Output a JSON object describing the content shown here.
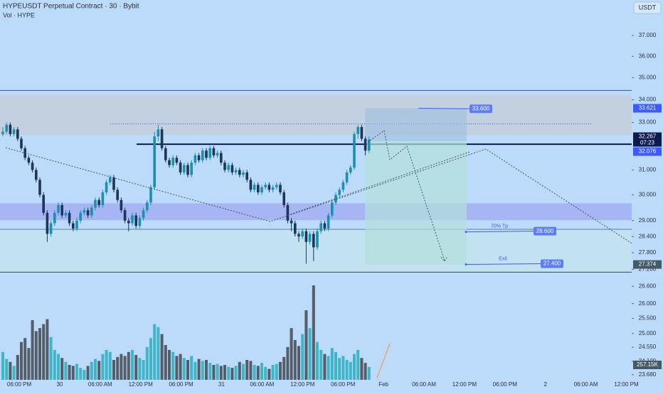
{
  "chart_data": {
    "type": "candlestick",
    "title": "HYPEUSDT Perpetual Contract · 30 · Bybit",
    "subtitle": "Vol · HYPE",
    "currency": "USDT",
    "log_scale": true,
    "ylim": [
      23.52,
      38.77
    ],
    "yticks": [
      {
        "value": 37,
        "label": "37.000"
      },
      {
        "value": 36,
        "label": "36.000"
      },
      {
        "value": 35,
        "label": "35.000"
      },
      {
        "value": 34,
        "label": "34.000"
      },
      {
        "value": 33,
        "label": "33.000"
      },
      {
        "value": 31,
        "label": "31.000"
      },
      {
        "value": 30,
        "label": "30.000"
      },
      {
        "value": 29,
        "label": "29.000"
      },
      {
        "value": 28.4,
        "label": "28.400"
      },
      {
        "value": 27.8,
        "label": "27.800"
      },
      {
        "value": 27.2,
        "label": "27.200"
      },
      {
        "value": 26.6,
        "label": "26.600"
      },
      {
        "value": 26,
        "label": "26.000"
      },
      {
        "value": 25.5,
        "label": "25.500"
      },
      {
        "value": 25,
        "label": "25.000"
      },
      {
        "value": 24.55,
        "label": "24.550"
      },
      {
        "value": 24.1,
        "label": "24.100"
      },
      {
        "value": 23.68,
        "label": "23.680"
      }
    ],
    "xlabels": [
      "06:00 PM",
      "30",
      "06:00 AM",
      "12:00 PM",
      "06:00 PM",
      "31",
      "06:00 AM",
      "12:00 PM",
      "06:00 PM",
      "Feb",
      "06:00 AM",
      "12:00 PM",
      "06:00 PM",
      "2",
      "06:00 AM",
      "12:00 PM"
    ],
    "open": [
      32.5,
      32.6,
      32.9,
      32.5,
      32.7,
      32.3,
      31.9,
      31.5,
      31.3,
      31.0,
      30.6,
      30.0,
      29.3,
      28.5,
      28.9,
      29.3,
      29.6,
      29.2,
      29.3,
      28.9,
      28.7,
      29.0,
      29.3,
      29.4,
      29.2,
      29.5,
      29.8,
      29.6,
      30.1,
      30.5,
      30.7,
      30.2,
      29.8,
      29.4,
      29.0,
      28.9,
      29.2,
      28.8,
      29.1,
      29.4,
      29.7,
      30.3,
      32.4,
      32.7,
      31.9,
      31.4,
      31.2,
      31.5,
      31.3,
      30.9,
      31.2,
      30.8,
      31.3,
      31.6,
      31.4,
      31.8,
      31.5,
      31.9,
      31.6,
      31.7,
      31.3,
      31.0,
      31.2,
      30.9,
      31.0,
      30.8,
      30.9,
      30.6,
      30.2,
      30.4,
      30.1,
      30.3,
      30.4,
      30.2,
      30.3,
      30.4,
      30.1,
      29.6,
      29.0,
      28.9,
      28.5,
      28.4,
      28.6,
      28.2,
      28.5,
      28.0,
      28.6,
      28.9,
      28.7,
      29.2,
      29.7,
      30.0,
      30.2,
      30.5,
      30.9,
      31.1,
      32.5,
      32.8,
      32.3,
      31.8
    ],
    "high": [
      32.8,
      33.0,
      33.0,
      32.8,
      32.8,
      32.4,
      32.0,
      31.6,
      31.4,
      31.1,
      30.7,
      30.1,
      29.4,
      29.0,
      29.4,
      29.7,
      29.7,
      29.4,
      29.4,
      29.0,
      29.1,
      29.4,
      29.5,
      29.5,
      29.6,
      29.9,
      29.9,
      30.2,
      30.6,
      30.8,
      30.8,
      30.3,
      29.9,
      29.5,
      29.1,
      29.3,
      29.3,
      29.2,
      29.5,
      29.8,
      30.4,
      32.6,
      32.9,
      32.8,
      32.0,
      31.5,
      31.6,
      31.6,
      31.4,
      31.3,
      31.3,
      31.4,
      31.7,
      31.7,
      31.9,
      31.9,
      32.0,
      32.0,
      31.8,
      31.8,
      31.4,
      31.3,
      31.3,
      31.1,
      31.1,
      31.0,
      31.0,
      30.7,
      30.5,
      30.5,
      30.4,
      30.5,
      30.5,
      30.4,
      30.5,
      30.5,
      30.2,
      29.7,
      29.1,
      29.0,
      28.6,
      28.7,
      28.7,
      28.6,
      28.6,
      28.7,
      29.0,
      29.0,
      29.3,
      29.8,
      30.1,
      30.3,
      30.6,
      31.0,
      31.2,
      32.6,
      32.9,
      32.9,
      32.4,
      32.4
    ],
    "low": [
      32.4,
      32.5,
      32.4,
      32.4,
      32.2,
      31.8,
      31.4,
      31.2,
      30.9,
      30.5,
      29.9,
      29.2,
      28.2,
      28.4,
      28.8,
      29.2,
      29.1,
      29.1,
      28.8,
      28.6,
      28.6,
      28.9,
      29.2,
      29.1,
      29.1,
      29.4,
      29.5,
      29.5,
      30.0,
      30.4,
      30.1,
      29.7,
      29.3,
      28.9,
      28.6,
      28.8,
      28.7,
      28.7,
      29.0,
      29.3,
      29.6,
      30.2,
      32.2,
      31.8,
      31.3,
      31.1,
      31.1,
      31.2,
      30.8,
      30.8,
      30.7,
      30.7,
      31.2,
      31.3,
      31.3,
      31.4,
      31.4,
      31.5,
      31.5,
      31.2,
      30.9,
      30.9,
      30.8,
      30.8,
      30.7,
      30.7,
      30.5,
      30.1,
      30.1,
      30.0,
      30.0,
      30.2,
      30.1,
      30.1,
      30.2,
      30.0,
      29.5,
      28.9,
      28.6,
      28.4,
      28.2,
      28.3,
      27.4,
      28.1,
      27.5,
      27.9,
      28.5,
      28.6,
      28.6,
      29.1,
      29.6,
      29.9,
      30.1,
      30.4,
      30.8,
      31.0,
      32.3,
      32.2,
      31.6,
      31.7
    ],
    "close": [
      32.6,
      32.9,
      32.5,
      32.7,
      32.3,
      31.9,
      31.5,
      31.3,
      31.0,
      30.6,
      30.0,
      29.3,
      28.5,
      28.9,
      29.3,
      29.6,
      29.2,
      29.3,
      28.9,
      28.7,
      29.0,
      29.3,
      29.4,
      29.2,
      29.5,
      29.8,
      29.6,
      30.1,
      30.5,
      30.7,
      30.2,
      29.8,
      29.4,
      29.0,
      28.9,
      29.2,
      28.8,
      29.1,
      29.4,
      29.7,
      30.3,
      32.4,
      32.7,
      31.9,
      31.4,
      31.2,
      31.5,
      31.3,
      30.9,
      31.2,
      30.8,
      31.3,
      31.6,
      31.4,
      31.8,
      31.5,
      31.9,
      31.6,
      31.7,
      31.3,
      31.0,
      31.2,
      30.9,
      31.0,
      30.8,
      30.9,
      30.6,
      30.2,
      30.4,
      30.1,
      30.3,
      30.4,
      30.2,
      30.3,
      30.4,
      30.1,
      29.6,
      29.0,
      28.9,
      28.5,
      28.4,
      28.6,
      28.2,
      28.5,
      28.0,
      28.6,
      28.9,
      28.7,
      29.2,
      29.7,
      30.0,
      30.2,
      30.5,
      30.9,
      31.1,
      32.5,
      32.8,
      32.3,
      31.8,
      32.267
    ],
    "volume": [
      280,
      210,
      180,
      140,
      250,
      380,
      420,
      320,
      600,
      490,
      520,
      560,
      610,
      430,
      300,
      260,
      220,
      180,
      150,
      140,
      160,
      120,
      100,
      140,
      180,
      210,
      190,
      260,
      300,
      280,
      200,
      230,
      260,
      240,
      280,
      300,
      250,
      220,
      200,
      330,
      420,
      560,
      530,
      460,
      350,
      300,
      280,
      240,
      260,
      220,
      200,
      240,
      180,
      210,
      190,
      200,
      170,
      150,
      160,
      140,
      150,
      130,
      120,
      140,
      180,
      160,
      200,
      190,
      150,
      140,
      170,
      130,
      110,
      150,
      160,
      180,
      230,
      330,
      520,
      400,
      340,
      460,
      700,
      520,
      950,
      380,
      300,
      260,
      240,
      320,
      280,
      220,
      240,
      200,
      180,
      260,
      300,
      220,
      170,
      130
    ],
    "vlim": [
      0,
      1000
    ],
    "up_color": "#1b8fb0",
    "down_color": "#1d3557",
    "vol_up_color": "#3fb5c9",
    "vol_down_color": "#555d68",
    "levels": [
      {
        "value": 34.42,
        "color": "#3f51b5"
      },
      {
        "value": 32.07,
        "color": "#0d1b4c"
      },
      {
        "value": 28.67,
        "color": "#5b7a99"
      },
      {
        "value": 27.1,
        "color": "#37474f"
      }
    ],
    "zones": [
      {
        "from": 32.46,
        "to": 34.2,
        "color": "#c6ccd6"
      },
      {
        "from": 29.02,
        "to": 29.67,
        "color": "#9fa8f0"
      },
      {
        "from": 27.1,
        "to": 28.67,
        "color": "#c4e3ee"
      }
    ],
    "dotted_level": 32.94,
    "position": {
      "entry": 32.2
    },
    "markers": [
      {
        "value": 33.621,
        "color": "#3d5afe"
      },
      {
        "value": 32.267,
        "color": "#0d1b4c"
      },
      {
        "value": 32.076,
        "color": "#3d5afe"
      },
      {
        "value": 27.374,
        "color": "#455a64"
      }
    ],
    "countdown": "07:23",
    "volume_label": "257.15K",
    "targets": [
      {
        "value": 33.6,
        "label": "33.600"
      },
      {
        "value": 28.6,
        "label": "28.600",
        "note": "70% Tp"
      },
      {
        "value": 27.4,
        "label": "27.400",
        "note": "Exit"
      }
    ]
  }
}
